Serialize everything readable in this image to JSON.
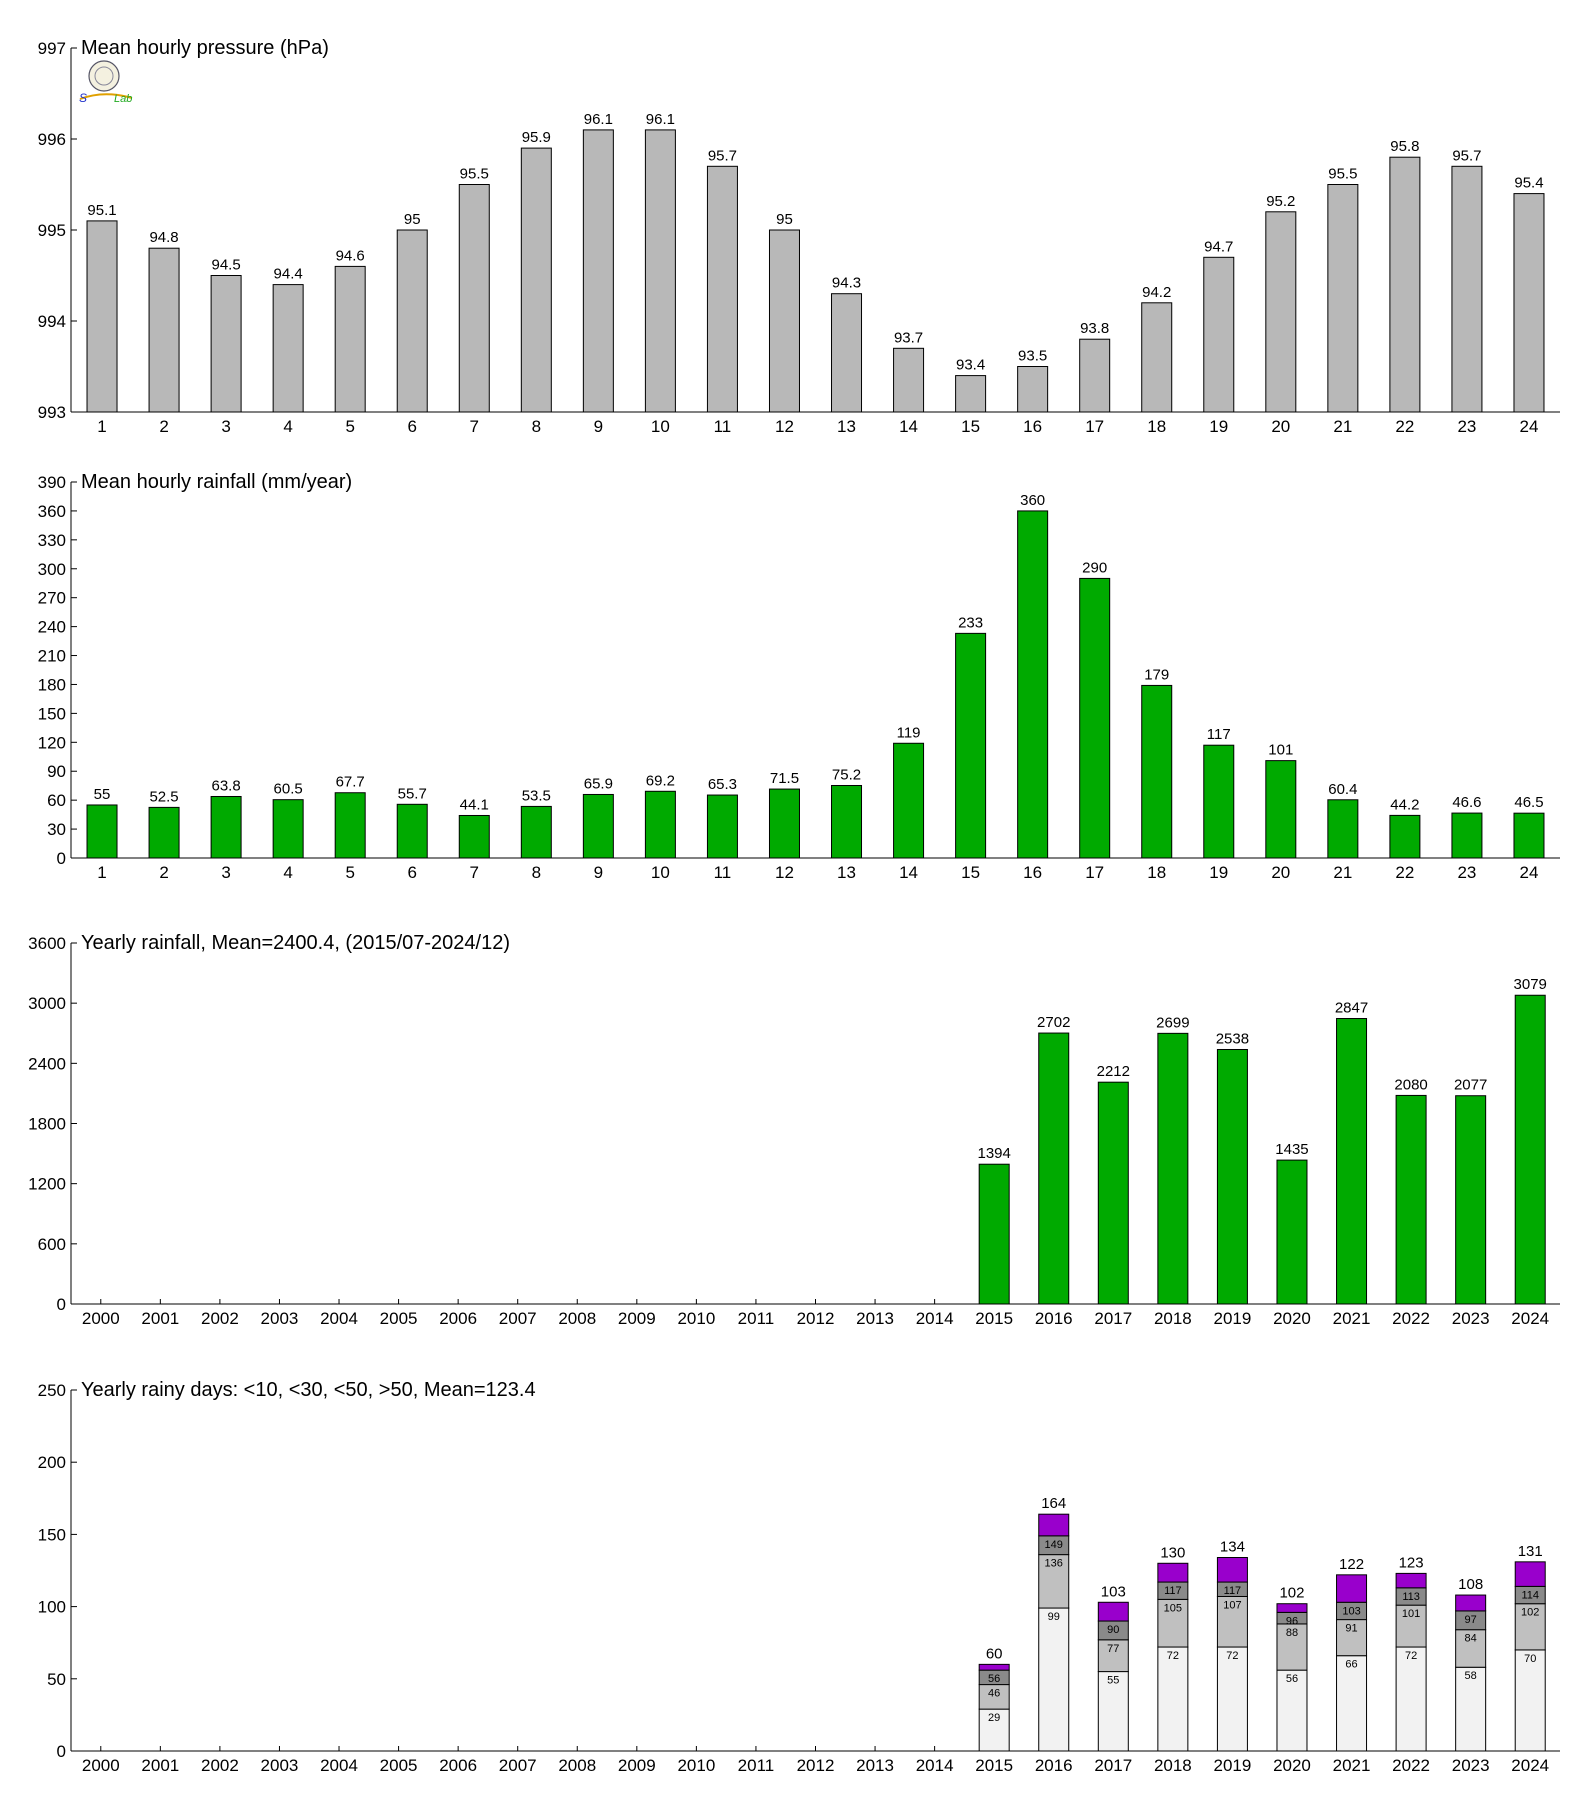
{
  "colors": {
    "pressure_bar": "#b8b8b8",
    "rain_bar": "#00aa00",
    "bar_edge": "#000000",
    "days_lt10": "#f2f2f2",
    "days_lt30": "#c0c0c0",
    "days_lt50": "#8a8a8a",
    "days_gt50": "#9900cc"
  },
  "chart_data": [
    {
      "type": "bar",
      "title": "Mean hourly pressure (hPa)",
      "xlabel": "",
      "ylabel": "",
      "ylim": [
        993,
        997
      ],
      "yticks": [
        "993",
        "994",
        "995",
        "996",
        "997"
      ],
      "categories": [
        "1",
        "2",
        "3",
        "4",
        "5",
        "6",
        "7",
        "8",
        "9",
        "10",
        "11",
        "12",
        "13",
        "14",
        "15",
        "16",
        "17",
        "18",
        "19",
        "20",
        "21",
        "22",
        "23",
        "24"
      ],
      "values": [
        995.1,
        994.8,
        994.5,
        994.4,
        994.6,
        995,
        995.5,
        995.9,
        996.1,
        996.1,
        995.7,
        995,
        994.3,
        993.7,
        993.4,
        993.5,
        993.8,
        994.2,
        994.7,
        995.2,
        995.5,
        995.8,
        995.7,
        995.4
      ],
      "labels": [
        "95.1",
        "94.8",
        "94.5",
        "94.4",
        "94.6",
        "95",
        "95.5",
        "95.9",
        "96.1",
        "96.1",
        "95.7",
        "95",
        "94.3",
        "93.7",
        "93.4",
        "93.5",
        "93.8",
        "94.2",
        "94.7",
        "95.2",
        "95.5",
        "95.8",
        "95.7",
        "95.4"
      ],
      "color": "pressure_bar",
      "grid": false
    },
    {
      "type": "bar",
      "title": "Mean hourly rainfall (mm/year)",
      "xlabel": "",
      "ylabel": "",
      "ylim": [
        0,
        390
      ],
      "yticks": [
        "0",
        "30",
        "60",
        "90",
        "120",
        "150",
        "180",
        "210",
        "240",
        "270",
        "300",
        "330",
        "360",
        "390"
      ],
      "categories": [
        "1",
        "2",
        "3",
        "4",
        "5",
        "6",
        "7",
        "8",
        "9",
        "10",
        "11",
        "12",
        "13",
        "14",
        "15",
        "16",
        "17",
        "18",
        "19",
        "20",
        "21",
        "22",
        "23",
        "24"
      ],
      "values": [
        55,
        52.5,
        63.8,
        60.5,
        67.7,
        55.7,
        44.1,
        53.5,
        65.9,
        69.2,
        65.3,
        71.5,
        75.2,
        119,
        233,
        360,
        290,
        179,
        117,
        101,
        60.4,
        44.2,
        46.6,
        46.5
      ],
      "labels": [
        "55",
        "52.5",
        "63.8",
        "60.5",
        "67.7",
        "55.7",
        "44.1",
        "53.5",
        "65.9",
        "69.2",
        "65.3",
        "71.5",
        "75.2",
        "119",
        "233",
        "360",
        "290",
        "179",
        "117",
        "101",
        "60.4",
        "44.2",
        "46.6",
        "46.5"
      ],
      "color": "rain_bar",
      "grid": false
    },
    {
      "type": "bar",
      "title": "Yearly rainfall, Mean=2400.4, (2015/07-2024/12)",
      "xlabel": "",
      "ylabel": "",
      "ylim": [
        0,
        3600
      ],
      "yticks": [
        "0",
        "600",
        "1200",
        "1800",
        "2400",
        "3000",
        "3600"
      ],
      "categories": [
        "2000",
        "2001",
        "2002",
        "2003",
        "2004",
        "2005",
        "2006",
        "2007",
        "2008",
        "2009",
        "2010",
        "2011",
        "2012",
        "2013",
        "2014",
        "2015",
        "2016",
        "2017",
        "2018",
        "2019",
        "2020",
        "2021",
        "2022",
        "2023",
        "2024"
      ],
      "values": [
        null,
        null,
        null,
        null,
        null,
        null,
        null,
        null,
        null,
        null,
        null,
        null,
        null,
        null,
        null,
        1394,
        2702,
        2212,
        2699,
        2538,
        1435,
        2847,
        2080,
        2077,
        3079
      ],
      "labels": [
        "",
        "",
        "",
        "",
        "",
        "",
        "",
        "",
        "",
        "",
        "",
        "",
        "",
        "",
        "",
        "1394",
        "2702",
        "2212",
        "2699",
        "2538",
        "1435",
        "2847",
        "2080",
        "2077",
        "3079"
      ],
      "color": "rain_bar",
      "grid": false
    },
    {
      "type": "bar",
      "stacked": true,
      "title": "Yearly rainy days: <10, <30, <50, >50, Mean=123.4",
      "xlabel": "",
      "ylabel": "",
      "ylim": [
        0,
        250
      ],
      "yticks": [
        "0",
        "50",
        "100",
        "150",
        "200",
        "250"
      ],
      "categories": [
        "2000",
        "2001",
        "2002",
        "2003",
        "2004",
        "2005",
        "2006",
        "2007",
        "2008",
        "2009",
        "2010",
        "2011",
        "2012",
        "2013",
        "2014",
        "2015",
        "2016",
        "2017",
        "2018",
        "2019",
        "2020",
        "2021",
        "2022",
        "2023",
        "2024"
      ],
      "cumulative": {
        "lt10": [
          null,
          null,
          null,
          null,
          null,
          null,
          null,
          null,
          null,
          null,
          null,
          null,
          null,
          null,
          null,
          29,
          99,
          55,
          72,
          72,
          56,
          66,
          72,
          58,
          70
        ],
        "lt30": [
          null,
          null,
          null,
          null,
          null,
          null,
          null,
          null,
          null,
          null,
          null,
          null,
          null,
          null,
          null,
          46,
          136,
          77,
          105,
          107,
          88,
          91,
          101,
          84,
          102
        ],
        "lt50": [
          null,
          null,
          null,
          null,
          null,
          null,
          null,
          null,
          null,
          null,
          null,
          null,
          null,
          null,
          null,
          56,
          149,
          90,
          117,
          117,
          96,
          103,
          113,
          97,
          114
        ],
        "total": [
          null,
          null,
          null,
          null,
          null,
          null,
          null,
          null,
          null,
          null,
          null,
          null,
          null,
          null,
          null,
          60,
          164,
          103,
          130,
          134,
          102,
          122,
          123,
          108,
          131
        ]
      },
      "colors": [
        "days_lt10",
        "days_lt30",
        "days_lt50",
        "days_gt50"
      ],
      "grid": false
    }
  ]
}
